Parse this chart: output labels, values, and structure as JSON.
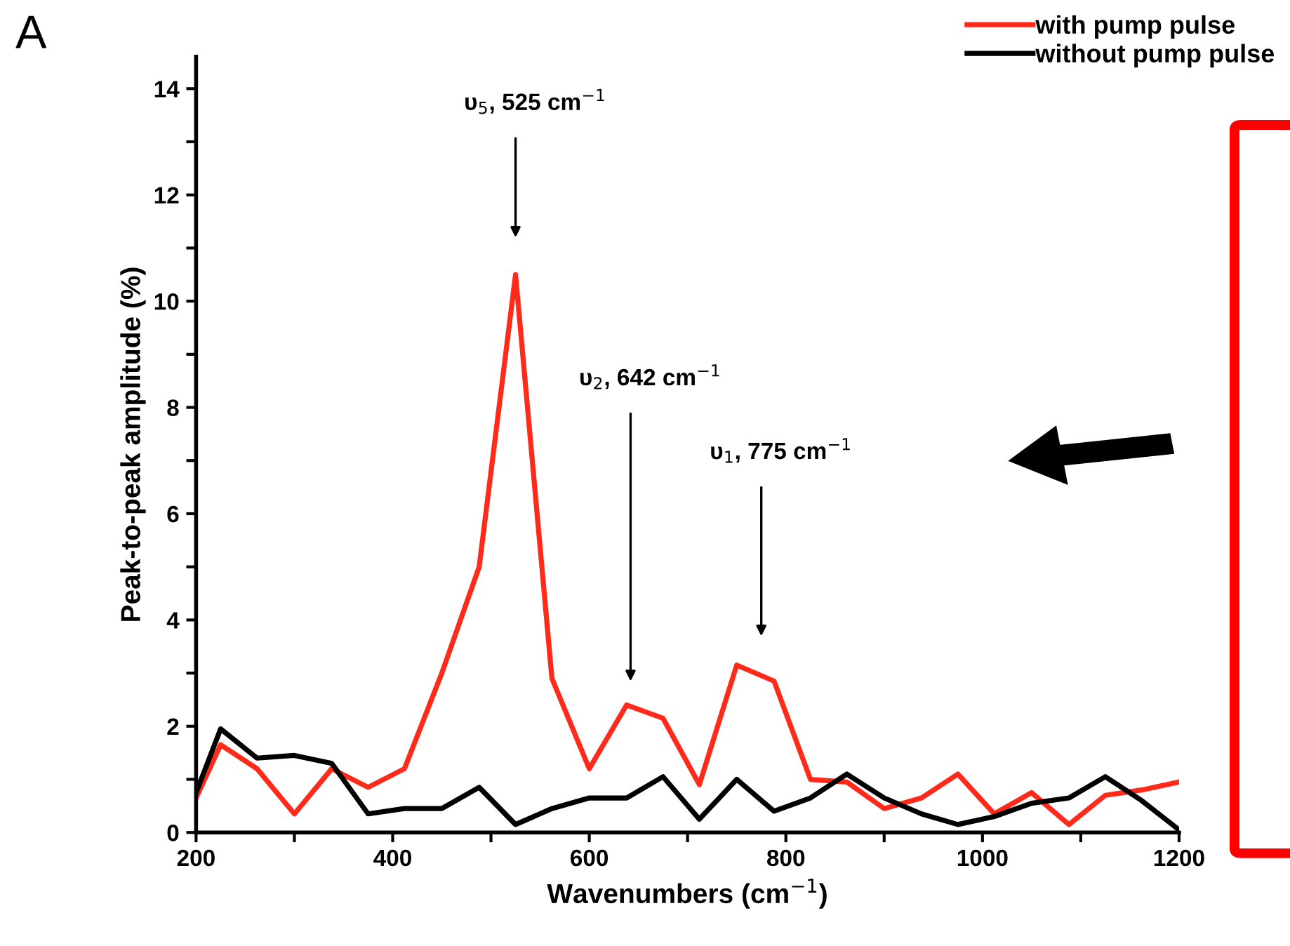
{
  "chart_data": {
    "type": "line",
    "xlabel": "Wavenumbers (cm$^{−1}$)",
    "ylabel": "Peak-to-peak amplitude (%)",
    "x": [
      200,
      225,
      262,
      300,
      338,
      375,
      412,
      450,
      488,
      525,
      562,
      600,
      638,
      675,
      712,
      750,
      788,
      825,
      862,
      900,
      938,
      975,
      1012,
      1050,
      1088,
      1125,
      1162,
      1200
    ],
    "series": [
      {
        "name": "with pump pulse",
        "color": "#ff2a1a",
        "values": [
          0.65,
          1.65,
          1.2,
          0.35,
          1.2,
          0.85,
          1.2,
          3.0,
          5.0,
          10.5,
          2.9,
          1.2,
          2.4,
          2.15,
          0.9,
          3.15,
          2.85,
          1.0,
          0.95,
          0.45,
          0.65,
          1.1,
          0.35,
          0.75,
          0.15,
          0.7,
          0.8,
          0.95
        ]
      },
      {
        "name": "without pump pulse",
        "color": "#000000",
        "values": [
          0.75,
          1.95,
          1.4,
          1.45,
          1.3,
          0.35,
          0.45,
          0.45,
          0.85,
          0.15,
          0.45,
          0.65,
          0.65,
          1.05,
          0.25,
          1.0,
          0.4,
          0.65,
          1.1,
          0.65,
          0.35,
          0.15,
          0.3,
          0.55,
          0.65,
          1.05,
          0.6,
          0.05
        ]
      }
    ],
    "xlim": [
      200,
      1200
    ],
    "ylim": [
      0,
      14.6
    ],
    "xticks": [
      200,
      {
        "value": 300,
        "label": null
      },
      400,
      {
        "value": 500,
        "label": null
      },
      600,
      {
        "value": 700,
        "label": null
      },
      800,
      {
        "value": 900,
        "label": null
      },
      1000,
      {
        "value": 1100,
        "label": null
      },
      1200
    ],
    "yticks": [
      0,
      {
        "value": 1,
        "label": null
      },
      2,
      {
        "value": 3,
        "label": null
      },
      4,
      {
        "value": 5,
        "label": null
      },
      6,
      {
        "value": 7,
        "label": null
      },
      8,
      {
        "value": 9,
        "label": null
      },
      10,
      {
        "value": 11,
        "label": null
      },
      12,
      {
        "value": 13,
        "label": null
      },
      14
    ],
    "annotations": [
      "A",
      "υ$_{5}$, 525 cm$^{−1}$",
      "υ$_{2}$, 642 cm$^{−1}$",
      "υ$_{1}$, 775 cm$^{−1}$"
    ],
    "legend": "top right",
    "grid": false,
    "marker": "none",
    "line_style": "solid"
  }
}
